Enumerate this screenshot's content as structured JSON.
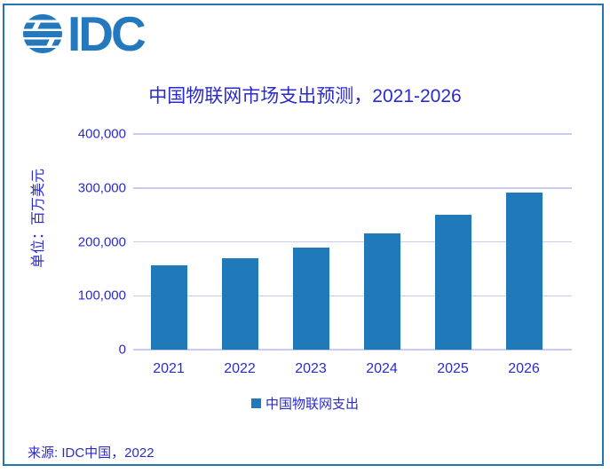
{
  "header": {
    "logo_text": "IDC"
  },
  "chart_data": {
    "type": "bar",
    "title": "中国物联网市场支出预测，2021-2026",
    "ylabel": "单位：百万美元",
    "xlabel": "",
    "categories": [
      "2021",
      "2022",
      "2023",
      "2024",
      "2025",
      "2026"
    ],
    "series": [
      {
        "name": "中国物联网支出",
        "values": [
          157000,
          169000,
          189000,
          216000,
          251000,
          292000
        ]
      }
    ],
    "ylim": [
      0,
      400000
    ],
    "ytick_labels": [
      "400,000",
      "300,000",
      "200,000",
      "100,000",
      "0"
    ],
    "grid": true,
    "legend_position": "bottom"
  },
  "footer": {
    "source": "来源: IDC中国，2022"
  },
  "colors": {
    "bar": "#2079B8",
    "text-blue": "#2B2BCC",
    "grid": "#C9CCF2",
    "border": "#2377B0",
    "logo": "#2478BE"
  }
}
